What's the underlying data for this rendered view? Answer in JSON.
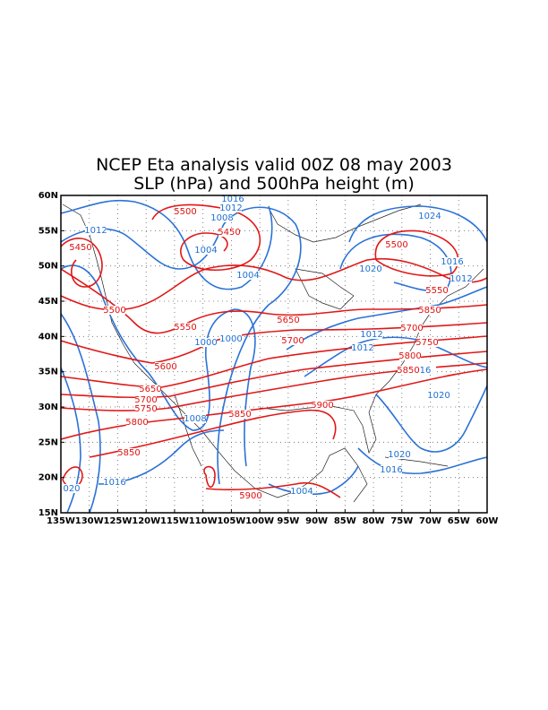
{
  "title": [
    "NCEP Eta analysis valid 00Z 08 may 2003",
    "SLP (hPa) and 500hPa height (m)"
  ],
  "map": {
    "lon_ticks": [
      "135W",
      "130W",
      "125W",
      "120W",
      "115W",
      "110W",
      "105W",
      "100W",
      "95W",
      "90W",
      "85W",
      "80W",
      "75W",
      "70W",
      "65W",
      "60W"
    ],
    "lat_ticks": [
      "60N",
      "55N",
      "50N",
      "45N",
      "40N",
      "35N",
      "30N",
      "25N",
      "20N",
      "15N"
    ],
    "slp_labels": [
      "1016",
      "1012",
      "1008",
      "1012",
      "1004",
      "1004",
      "1000",
      "1000",
      "1024",
      "1020",
      "1016",
      "1012",
      "1012",
      "1012",
      "16",
      "1020",
      "1008",
      "1020",
      "1016",
      "1016",
      "020",
      "1004"
    ],
    "height_labels": [
      "5500",
      "5450",
      "5450",
      "5500",
      "5550",
      "5600",
      "5650",
      "5700",
      "5750",
      "5800",
      "5850",
      "5650",
      "5700",
      "5850",
      "5900",
      "5900",
      "5500",
      "5550",
      "5850",
      "5700",
      "5750",
      "5800",
      "5850"
    ]
  }
}
